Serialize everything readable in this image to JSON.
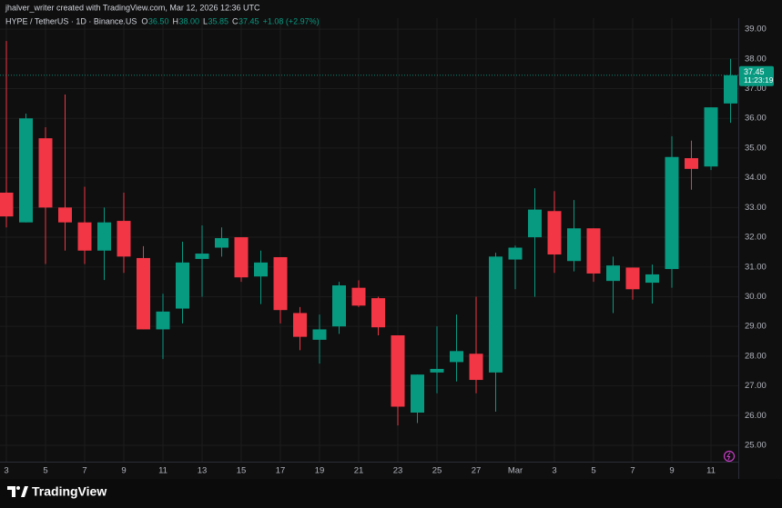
{
  "header": {
    "credit": "jhalver_writer created with TradingView.com, Mar 12, 2026 12:36 UTC"
  },
  "legend": {
    "symbol": "HYPE / TetherUS · 1D · Binance.US",
    "items": [
      {
        "key": "O",
        "value": "36.50"
      },
      {
        "key": "H",
        "value": "38.00"
      },
      {
        "key": "L",
        "value": "35.85"
      },
      {
        "key": "C",
        "value": "37.45"
      }
    ],
    "change": "+1.08 (+2.97%)"
  },
  "footer": {
    "brand": "TradingView"
  },
  "chart_data": {
    "type": "candlestick",
    "categories": [
      "3",
      null,
      "5",
      null,
      "7",
      null,
      "9",
      null,
      "11",
      null,
      "13",
      null,
      "15",
      null,
      "17",
      null,
      "19",
      null,
      "21",
      null,
      "23",
      null,
      "25",
      null,
      "27",
      null,
      "Mar",
      null,
      "3",
      null,
      "5",
      null,
      "7",
      null,
      "9",
      null,
      "11",
      null
    ],
    "open": [
      33.5,
      32.5,
      35.33,
      33.0,
      32.5,
      31.55,
      32.55,
      31.3,
      28.9,
      29.6,
      31.27,
      31.65,
      32.0,
      30.68,
      31.33,
      29.45,
      28.55,
      29.0,
      30.3,
      29.95,
      28.7,
      26.1,
      27.45,
      27.8,
      28.08,
      27.45,
      31.25,
      32.0,
      32.88,
      31.2,
      32.3,
      30.53,
      30.98,
      30.47,
      30.93,
      34.66,
      34.38,
      36.5
    ],
    "high": [
      38.6,
      36.16,
      35.7,
      36.8,
      33.7,
      33.0,
      33.5,
      31.7,
      30.1,
      31.85,
      32.4,
      32.33,
      32.0,
      31.55,
      31.33,
      29.65,
      29.4,
      30.5,
      30.55,
      30.0,
      28.7,
      27.38,
      29.0,
      29.4,
      30.0,
      31.48,
      31.72,
      33.65,
      33.55,
      33.25,
      32.3,
      31.35,
      30.98,
      31.08,
      35.4,
      35.25,
      36.37,
      38.0
    ],
    "low": [
      32.33,
      32.5,
      31.1,
      31.55,
      31.1,
      30.56,
      30.8,
      28.9,
      27.9,
      29.1,
      30.0,
      31.35,
      30.5,
      29.75,
      29.1,
      28.2,
      27.75,
      28.75,
      29.65,
      28.7,
      25.67,
      25.75,
      26.75,
      27.15,
      26.75,
      26.13,
      30.25,
      30.0,
      30.8,
      30.85,
      30.5,
      29.45,
      29.9,
      29.77,
      30.3,
      33.6,
      34.26,
      35.85
    ],
    "close": [
      32.7,
      36.0,
      33.0,
      32.5,
      31.55,
      32.5,
      31.35,
      28.9,
      29.5,
      31.15,
      31.45,
      31.97,
      30.65,
      31.15,
      29.55,
      28.65,
      28.9,
      30.38,
      29.7,
      28.97,
      26.3,
      27.38,
      27.57,
      28.17,
      27.2,
      31.35,
      31.65,
      32.93,
      31.42,
      32.3,
      30.78,
      31.05,
      30.25,
      30.75,
      34.7,
      34.3,
      36.37,
      37.45
    ],
    "up_color": "#089981",
    "down_color": "#f23645",
    "ylim": [
      24.45,
      39.37
    ],
    "yticks": [
      {
        "value": 25,
        "label": "25.00"
      },
      {
        "value": 26,
        "label": "26.00"
      },
      {
        "value": 27,
        "label": "27.00"
      },
      {
        "value": 28,
        "label": "28.00"
      },
      {
        "value": 29,
        "label": "29.00"
      },
      {
        "value": 30,
        "label": "30.00"
      },
      {
        "value": 31,
        "label": "31.00"
      },
      {
        "value": 32,
        "label": "32.00"
      },
      {
        "value": 33,
        "label": "33.00"
      },
      {
        "value": 34,
        "label": "34.00"
      },
      {
        "value": 35,
        "label": "35.00"
      },
      {
        "value": 36,
        "label": "36.00"
      },
      {
        "value": 37,
        "label": "37.00"
      },
      {
        "value": 38,
        "label": "38.00"
      },
      {
        "value": 39,
        "label": "39.00"
      }
    ],
    "grid": true,
    "last_price": 37.45,
    "countdown": "11:23:19"
  }
}
